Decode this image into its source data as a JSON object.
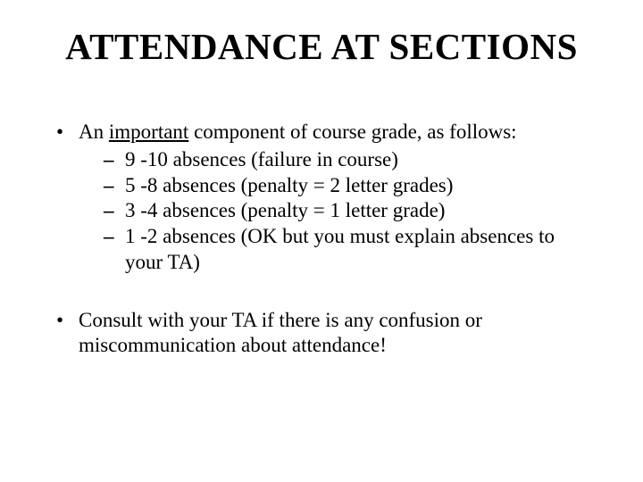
{
  "title": "ATTENDANCE AT SECTIONS",
  "bullet1": {
    "prefix": "An ",
    "underlined": "important",
    "suffix": " component of course grade, as follows:",
    "sub1": "9 -10 absences (failure in course)",
    "sub2": "5 -8 absences (penalty = 2 letter grades)",
    "sub3": "3 -4 absences (penalty = 1 letter grade)",
    "sub4": "1 -2 absences  (OK but you must explain absences to your TA)"
  },
  "bullet2": "Consult with your TA if there is any confusion or miscommunication about attendance!",
  "style": {
    "background_color": "#ffffff",
    "text_color": "#000000",
    "title_fontsize": 41,
    "body_fontsize": 23,
    "font_family": "Times New Roman"
  }
}
